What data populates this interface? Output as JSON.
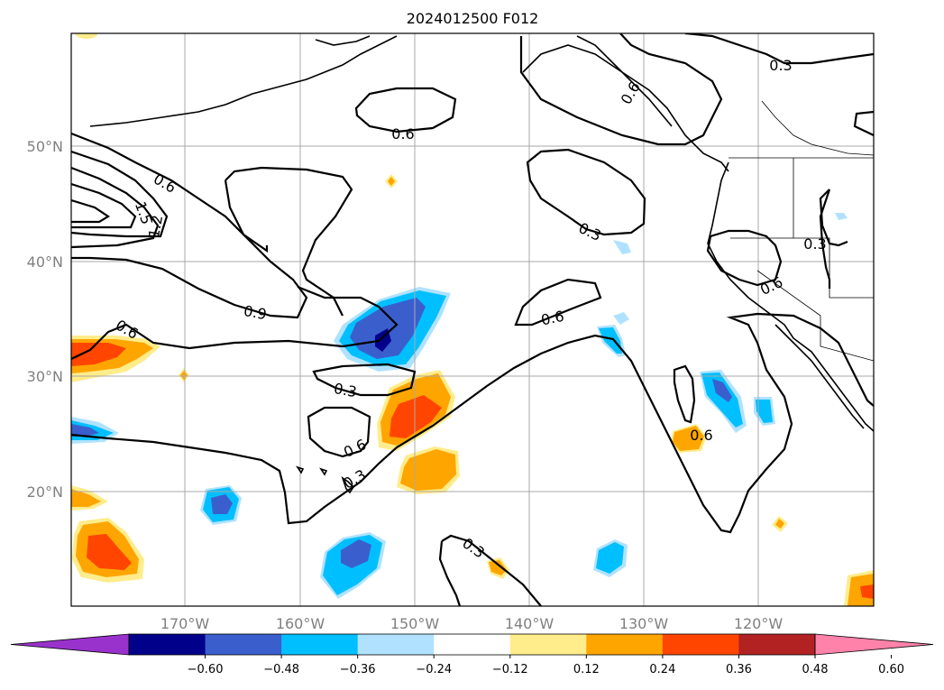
{
  "title": "2024012500 F012",
  "lat_labels": [
    "50°N",
    "40°N",
    "30°N",
    "20°N"
  ],
  "lon_labels": [
    "170°W",
    "160°W",
    "150°W",
    "140°W",
    "130°W",
    "120°W"
  ],
  "colorbar": {
    "colors": [
      "#9932cc",
      "#00008b",
      "#3a5fcd",
      "#00bfff",
      "#b0e2ff",
      "#ffffff",
      "#ffec8b",
      "#ffa500",
      "#ff4500",
      "#b22222",
      "#ff82ab"
    ],
    "tick_labels": [
      "−0.60",
      "−0.48",
      "−0.36",
      "−0.24",
      "−0.12",
      "0.12",
      "0.24",
      "0.36",
      "0.48",
      "0.60"
    ]
  },
  "contour_labels": [
    "0.3",
    "0.6",
    "0.6",
    "1.5",
    "1.2",
    "0.3",
    "0.9",
    "0.6",
    "0.3",
    "0.6",
    "0.6",
    "0.3",
    "0.6",
    "0.3",
    "0.3",
    "0.6",
    "0.6"
  ]
}
